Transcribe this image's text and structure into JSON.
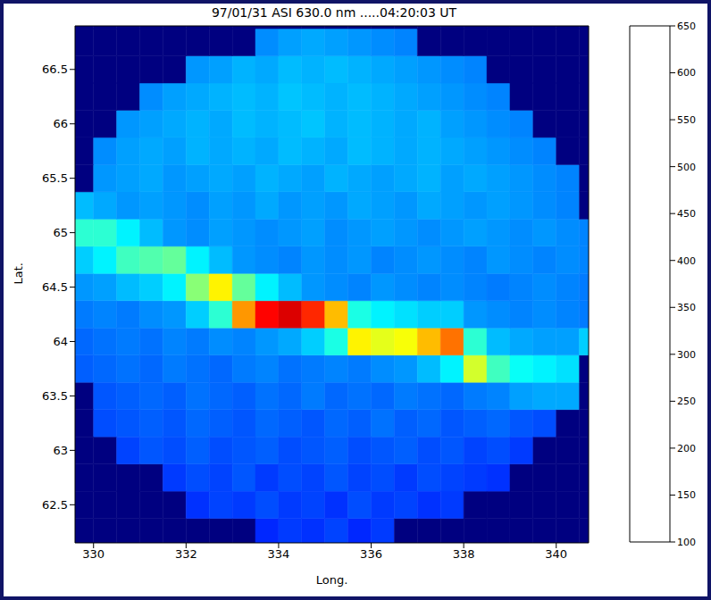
{
  "chart_data": {
    "type": "heatmap",
    "title": "97/01/31 ASI 630.0 nm .....04:20:03 UT",
    "x_label": "Long.",
    "y_label": "Lat.",
    "x": [
      329.75,
      330.25,
      330.75,
      331.25,
      331.75,
      332.25,
      332.75,
      333.25,
      333.75,
      334.25,
      334.75,
      335.25,
      335.75,
      336.25,
      336.75,
      337.25,
      337.75,
      338.25,
      338.75,
      339.25,
      339.75,
      340.25,
      340.75
    ],
    "y": [
      62.25,
      62.5,
      62.75,
      63.0,
      63.25,
      63.5,
      63.75,
      64.0,
      64.25,
      64.5,
      64.75,
      65.0,
      65.25,
      65.5,
      65.75,
      66.0,
      66.25,
      66.5,
      66.75,
      67.0
    ],
    "values": [
      [
        100,
        100,
        100,
        100,
        100,
        100,
        100,
        100,
        190,
        200,
        195,
        205,
        190,
        200,
        100,
        100,
        100,
        100,
        100,
        100,
        100,
        100,
        100
      ],
      [
        100,
        100,
        100,
        100,
        100,
        195,
        205,
        200,
        210,
        200,
        205,
        195,
        210,
        200,
        205,
        195,
        200,
        100,
        100,
        100,
        100,
        100,
        100
      ],
      [
        100,
        100,
        100,
        100,
        200,
        210,
        205,
        215,
        200,
        210,
        205,
        215,
        205,
        210,
        200,
        210,
        205,
        200,
        195,
        100,
        100,
        100,
        100
      ],
      [
        100,
        100,
        205,
        215,
        210,
        220,
        210,
        215,
        220,
        210,
        215,
        220,
        210,
        215,
        220,
        210,
        215,
        205,
        210,
        200,
        100,
        100,
        100
      ],
      [
        100,
        210,
        215,
        220,
        215,
        225,
        220,
        215,
        225,
        220,
        215,
        225,
        220,
        230,
        220,
        225,
        215,
        220,
        225,
        215,
        210,
        100,
        100
      ],
      [
        100,
        215,
        220,
        225,
        220,
        230,
        225,
        220,
        230,
        225,
        235,
        225,
        230,
        225,
        235,
        230,
        225,
        235,
        240,
        255,
        260,
        260,
        100
      ],
      [
        220,
        225,
        230,
        225,
        235,
        230,
        225,
        235,
        240,
        230,
        235,
        240,
        235,
        245,
        250,
        270,
        300,
        420,
        340,
        310,
        300,
        290,
        100
      ],
      [
        225,
        230,
        235,
        230,
        240,
        235,
        245,
        240,
        250,
        260,
        280,
        320,
        450,
        430,
        440,
        480,
        520,
        330,
        270,
        260,
        255,
        255,
        280
      ],
      [
        235,
        240,
        235,
        245,
        250,
        280,
        330,
        500,
        580,
        600,
        560,
        480,
        320,
        300,
        290,
        280,
        280,
        250,
        245,
        240,
        245,
        240,
        235
      ],
      [
        250,
        255,
        270,
        280,
        300,
        380,
        450,
        360,
        300,
        270,
        250,
        245,
        240,
        250,
        245,
        240,
        245,
        240,
        235,
        240,
        245,
        240,
        235
      ],
      [
        280,
        300,
        340,
        350,
        360,
        300,
        270,
        250,
        245,
        240,
        250,
        245,
        250,
        240,
        245,
        250,
        245,
        240,
        250,
        245,
        240,
        245,
        240
      ],
      [
        330,
        330,
        300,
        270,
        250,
        245,
        255,
        250,
        245,
        250,
        255,
        245,
        250,
        255,
        250,
        245,
        250,
        255,
        250,
        245,
        250,
        245,
        240
      ],
      [
        270,
        260,
        250,
        255,
        250,
        245,
        255,
        250,
        260,
        250,
        255,
        250,
        260,
        255,
        250,
        260,
        255,
        250,
        255,
        250,
        245,
        240,
        100
      ],
      [
        100,
        250,
        255,
        260,
        250,
        255,
        260,
        255,
        265,
        260,
        255,
        265,
        260,
        255,
        260,
        265,
        255,
        260,
        255,
        250,
        245,
        240,
        100
      ],
      [
        100,
        245,
        255,
        260,
        255,
        265,
        260,
        265,
        260,
        270,
        265,
        260,
        270,
        265,
        260,
        265,
        260,
        255,
        250,
        245,
        240,
        100,
        100
      ],
      [
        100,
        100,
        250,
        255,
        260,
        265,
        260,
        270,
        265,
        270,
        275,
        265,
        270,
        265,
        260,
        265,
        255,
        250,
        245,
        240,
        100,
        100,
        100
      ],
      [
        100,
        100,
        100,
        245,
        255,
        260,
        265,
        270,
        265,
        275,
        270,
        265,
        270,
        265,
        260,
        255,
        250,
        245,
        240,
        100,
        100,
        100,
        100
      ],
      [
        100,
        100,
        100,
        100,
        100,
        250,
        255,
        265,
        260,
        270,
        265,
        270,
        265,
        260,
        255,
        250,
        245,
        240,
        100,
        100,
        100,
        100,
        100
      ],
      [
        100,
        100,
        100,
        100,
        100,
        100,
        100,
        100,
        245,
        255,
        260,
        255,
        250,
        245,
        240,
        100,
        100,
        100,
        100,
        100,
        100,
        100,
        100
      ],
      [
        100,
        100,
        100,
        100,
        100,
        100,
        100,
        100,
        100,
        100,
        100,
        100,
        100,
        100,
        100,
        100,
        100,
        100,
        100,
        100,
        100,
        100,
        100
      ]
    ],
    "xlim": [
      329.6,
      340.7
    ],
    "ylim": [
      62.15,
      66.9
    ],
    "xticks": [
      330,
      332,
      334,
      336,
      338,
      340
    ],
    "yticks": [
      62.5,
      63,
      63.5,
      64,
      64.5,
      65,
      65.5,
      66,
      66.5
    ],
    "colorbar": {
      "range": [
        100,
        650
      ],
      "ticks": [
        100,
        150,
        200,
        250,
        300,
        350,
        400,
        450,
        500,
        550,
        600,
        650
      ]
    }
  }
}
